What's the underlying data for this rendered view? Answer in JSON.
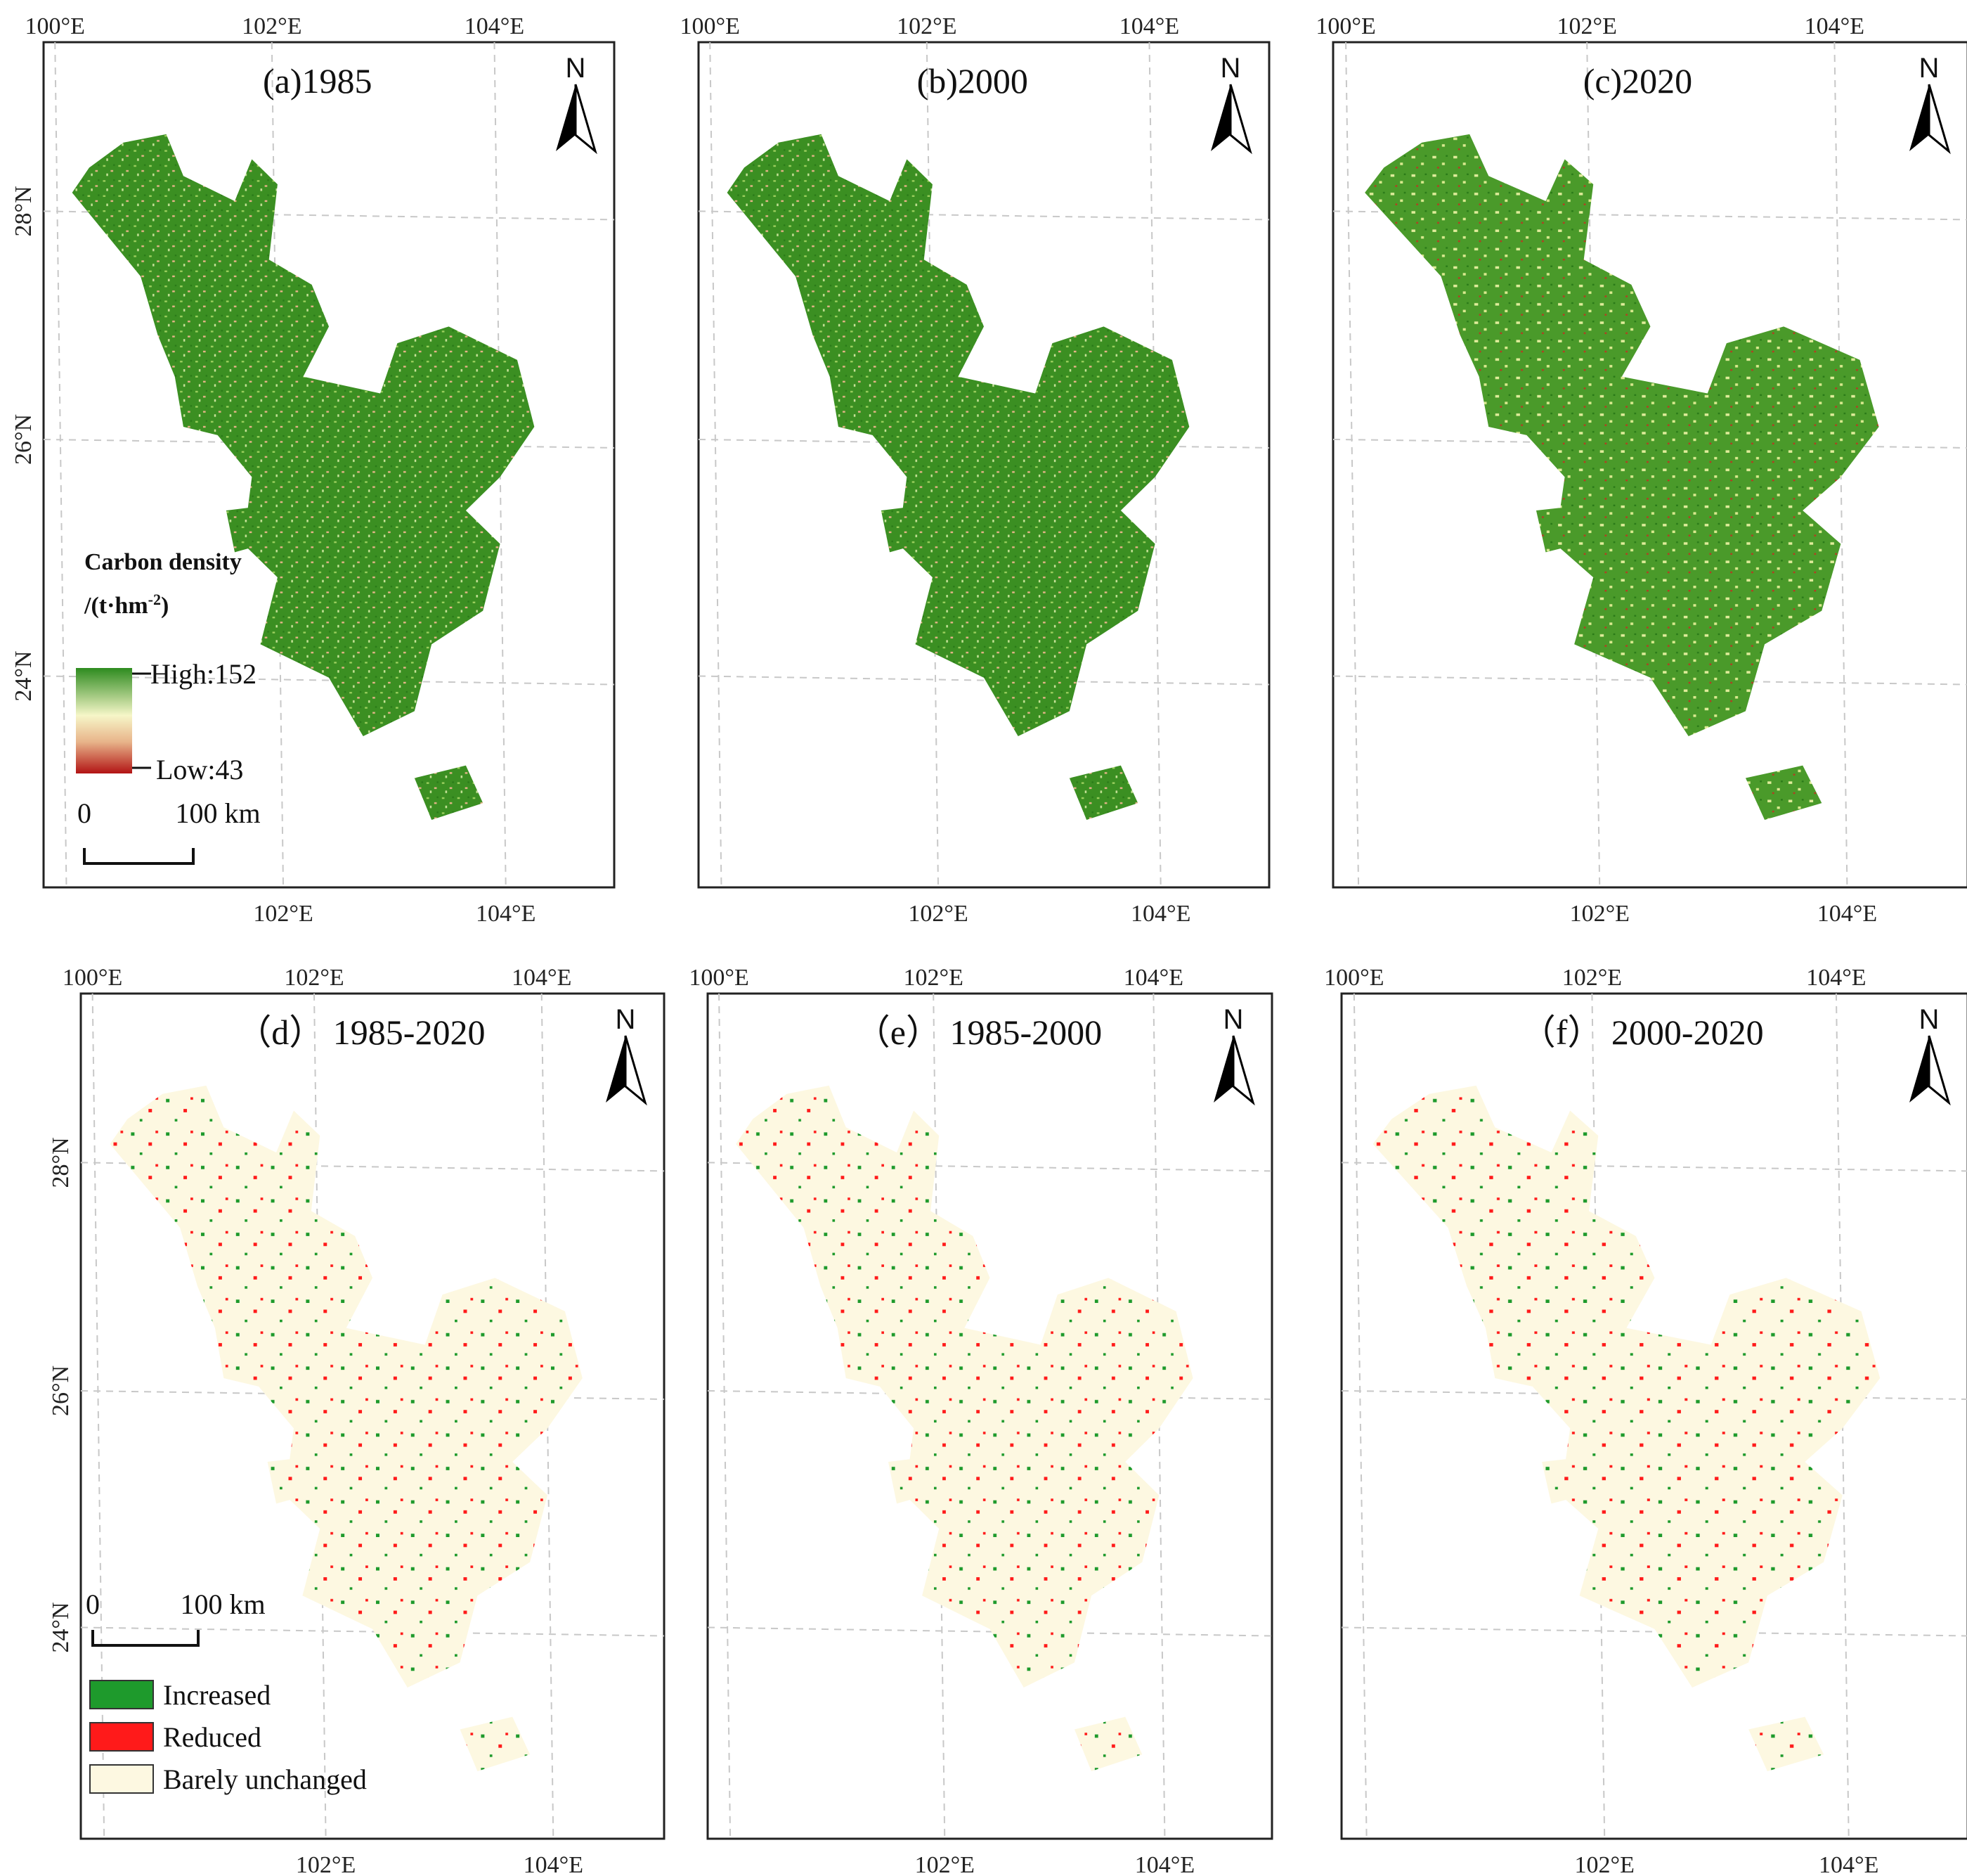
{
  "colors": {
    "high": "#2e8b1f",
    "mid": "#f6f6c8",
    "low_mid": "#e8b48a",
    "low": "#b21414",
    "increased": "#1e9a2c",
    "reduced": "#ff1a1a",
    "unchanged": "#fdf8e1",
    "grid": "#c8c8c8",
    "frame": "#222222"
  },
  "axis_labels": {
    "lon": [
      "100°E",
      "102°E",
      "104°E"
    ],
    "lat": [
      "28°N",
      "26°N",
      "24°N"
    ]
  },
  "north_label": "N",
  "panels": [
    {
      "id": "a",
      "title": "(a)1985",
      "kind": "density"
    },
    {
      "id": "b",
      "title": "(b)2000",
      "kind": "density"
    },
    {
      "id": "c",
      "title": "(c)2020",
      "kind": "density"
    },
    {
      "id": "d",
      "title": "（d） 1985-2020",
      "kind": "change"
    },
    {
      "id": "e",
      "title": "（e） 1985-2000",
      "kind": "change"
    },
    {
      "id": "f",
      "title": "（f） 2000-2020",
      "kind": "change"
    }
  ],
  "density_legend": {
    "title_line1": "Carbon density",
    "title_line2": "/(t·hm",
    "title_sup": "-2",
    "title_end": ")",
    "high_label": "High:152",
    "low_label": "Low:43"
  },
  "change_legend": {
    "items": [
      {
        "label": "Increased",
        "color_key": "increased"
      },
      {
        "label": "Reduced",
        "color_key": "reduced"
      },
      {
        "label": "Barely unchanged",
        "color_key": "unchanged"
      }
    ]
  },
  "scale_bar": {
    "zero": "0",
    "distance": "100",
    "unit": "km"
  }
}
